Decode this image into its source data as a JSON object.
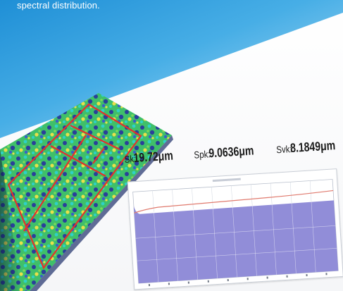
{
  "caption": {
    "text": "spectral distribution."
  },
  "metrics": [
    {
      "label": "Sk:",
      "value": "19.72μm"
    },
    {
      "label": "Spk:",
      "value": "9.0636μm"
    },
    {
      "label": "Svk:",
      "value": "8.1849μm"
    }
  ],
  "colors": {
    "background_blue": "#2f9fe0",
    "background_light": "#f4f8fb",
    "surface_blue": "#2a3f9a",
    "surface_cyan": "#2fd1c8",
    "surface_green": "#7ed957",
    "surface_yellow": "#e8e04a",
    "overlay_red": "#e4312b",
    "chart_fill": "#8b87d6",
    "chart_curve": "#e07a6e"
  }
}
